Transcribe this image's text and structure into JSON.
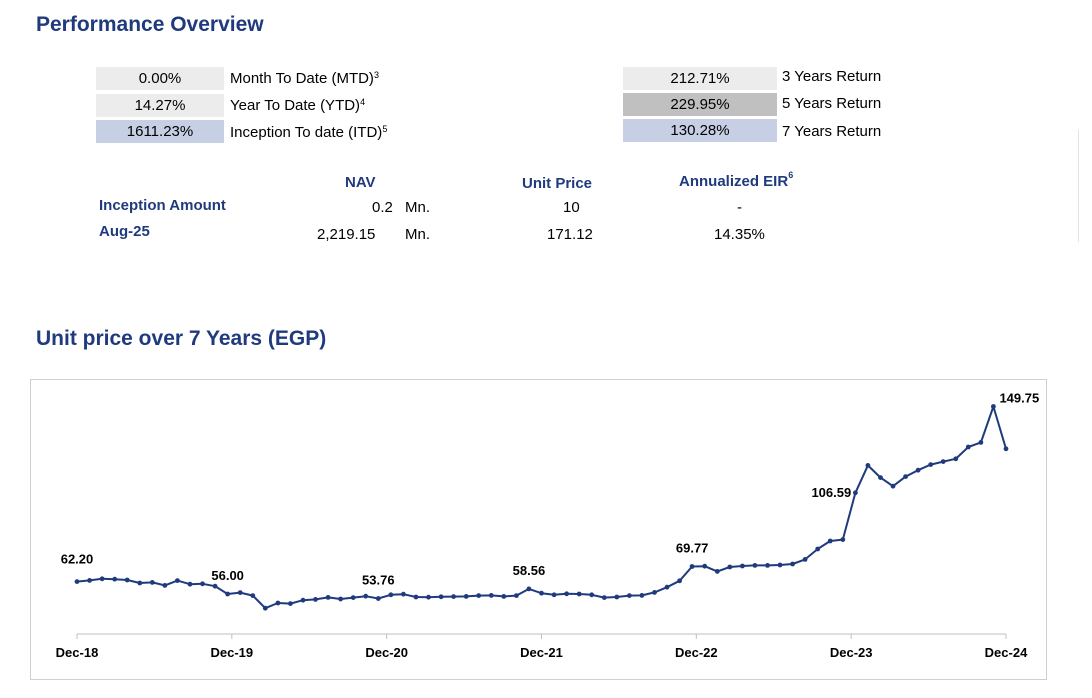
{
  "performance": {
    "title": "Performance Overview",
    "left_metrics": [
      {
        "value": "0.00%",
        "label": "Month To Date (MTD)",
        "sup": "3"
      },
      {
        "value": "14.27%",
        "label": "Year To Date (YTD)",
        "sup": "4"
      },
      {
        "value": "1611.23%",
        "label": "Inception To date (ITD)",
        "sup": "5"
      }
    ],
    "right_metrics": [
      {
        "value": "212.71%",
        "label": "3 Years Return"
      },
      {
        "value": "229.95%",
        "label": "5 Years Return"
      },
      {
        "value": "130.28%",
        "label": "7 Years Return"
      }
    ]
  },
  "nav_table": {
    "headers": {
      "nav": "NAV",
      "unit_price": "Unit Price",
      "eir": "Annualized EIR",
      "eir_sup": "6"
    },
    "rows": [
      {
        "label": "Inception Amount",
        "nav": "0.2",
        "unit": "Mn.",
        "unit_price": "10",
        "eir": "-"
      },
      {
        "label": "Aug-25",
        "nav": "2,219.15",
        "unit": "Mn.",
        "unit_price": "171.12",
        "eir": "14.35%"
      }
    ]
  },
  "chart_data": {
    "type": "line",
    "title": "Unit price over 7 Years (EGP)",
    "xlabel": "",
    "ylabel": "",
    "ylim": [
      40,
      160
    ],
    "grid": false,
    "color": "#1f3a7d",
    "x_ticks": [
      "Dec-18",
      "Dec-19",
      "Dec-20",
      "Dec-21",
      "Dec-22",
      "Dec-23",
      "Dec-24"
    ],
    "series": [
      {
        "name": "Unit Price",
        "values": [
          62.2,
          62.8,
          63.6,
          63.4,
          63.0,
          61.5,
          61.8,
          60.3,
          62.7,
          60.9,
          61.1,
          59.9,
          56.0,
          56.7,
          55.2,
          48.9,
          51.5,
          51.2,
          52.9,
          53.3,
          54.3,
          53.5,
          54.2,
          54.9,
          53.76,
          55.6,
          55.9,
          54.5,
          54.4,
          54.6,
          54.7,
          54.8,
          55.2,
          55.3,
          54.8,
          55.2,
          58.56,
          56.4,
          55.6,
          56.1,
          56.0,
          55.6,
          54.2,
          54.5,
          55.2,
          55.3,
          56.8,
          59.4,
          62.6,
          69.77,
          69.9,
          67.3,
          69.5,
          70.0,
          70.3,
          70.3,
          70.5,
          71.0,
          73.3,
          78.5,
          82.5,
          83.2,
          106.59,
          120.3,
          114.2,
          109.9,
          114.7,
          117.9,
          120.7,
          122.2,
          123.6,
          129.5,
          131.8,
          149.75,
          128.6
        ]
      }
    ],
    "annotations": [
      {
        "index": 0,
        "label": "62.20"
      },
      {
        "index": 12,
        "label": "56.00"
      },
      {
        "index": 24,
        "label": "53.76"
      },
      {
        "index": 36,
        "label": "58.56"
      },
      {
        "index": 49,
        "label": "69.77"
      },
      {
        "index": 62,
        "label": "106.59"
      },
      {
        "index": 73,
        "label": "149.75"
      }
    ]
  }
}
